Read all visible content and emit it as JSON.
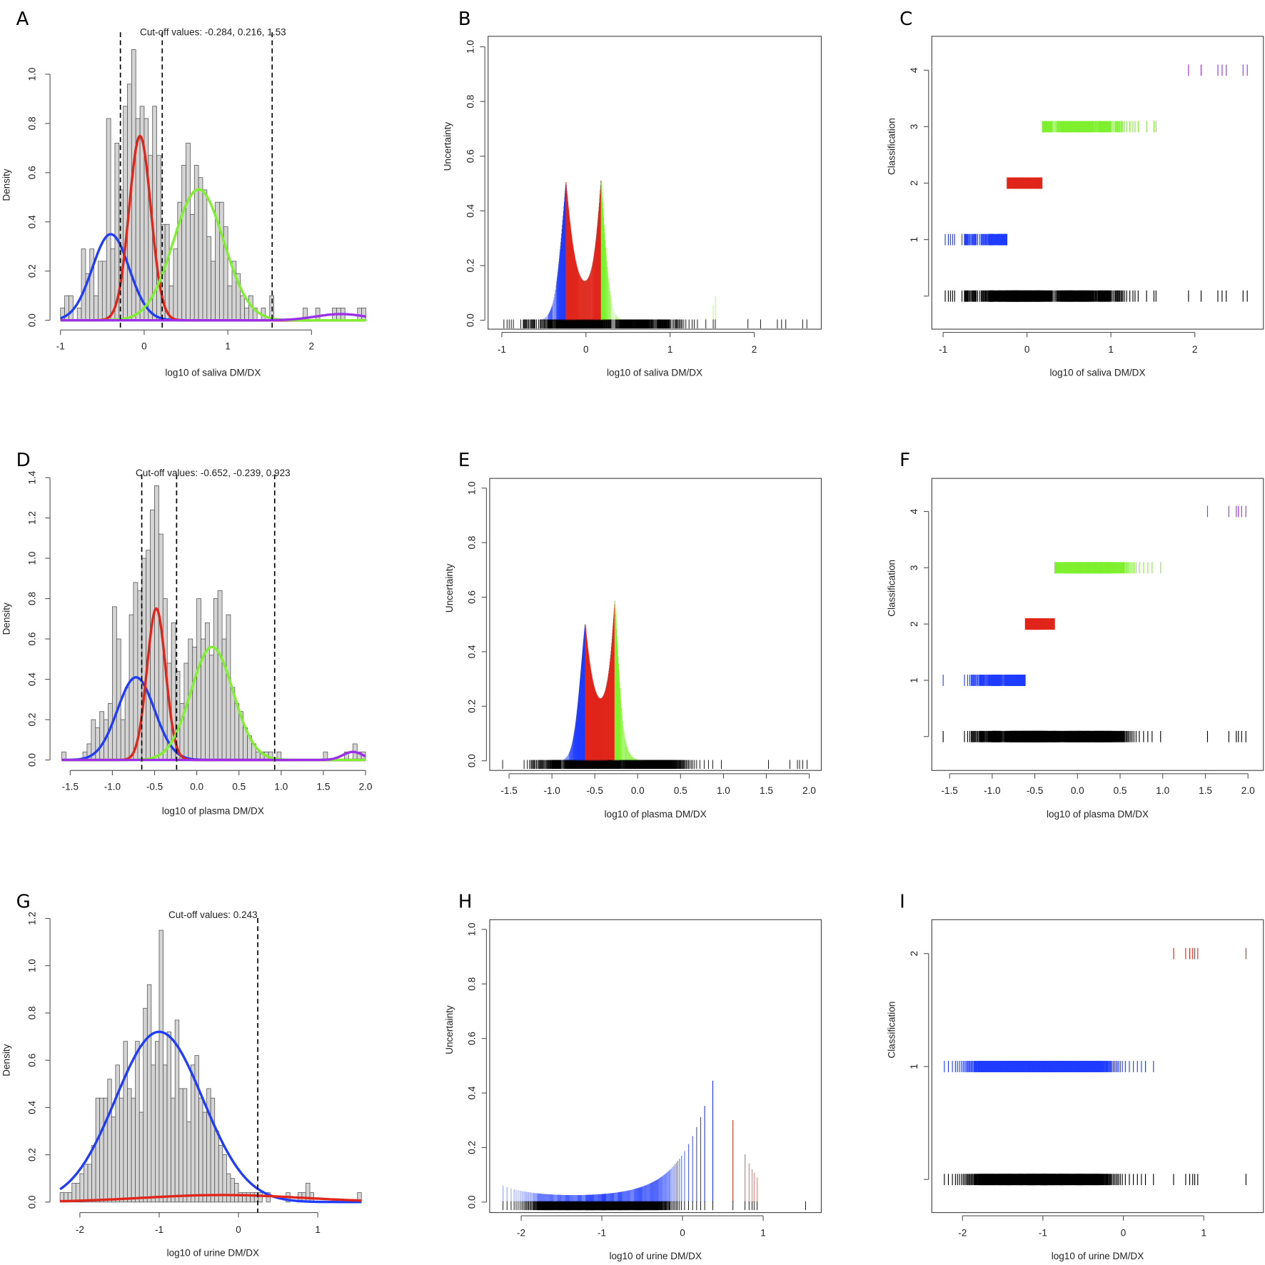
{
  "colors": {
    "blue": "#1f3cff",
    "red": "#e0261b",
    "green": "#7ef02e",
    "purple": "#9b30e8",
    "bar": "#d4d4d4",
    "black": "#000000"
  },
  "chart_data": [
    {
      "panel": "A",
      "type": "histogram-mixture",
      "title": "Cut-off values: -0.284, 0.216, 1.53",
      "cutoffs": [
        -0.284,
        0.216,
        1.53
      ],
      "xlabel": "log10 of saliva DM/DX",
      "ylabel": "Density",
      "xlim": [
        -1,
        2.65
      ],
      "ylim": [
        0,
        1.1
      ],
      "xticks": [
        "-1",
        "0",
        "1",
        "2"
      ],
      "xtick_values": [
        -1,
        0,
        1,
        2
      ],
      "yticks": [
        "0.0",
        "0.2",
        "0.4",
        "0.6",
        "0.8",
        "1.0"
      ],
      "ytick_values": [
        0,
        0.2,
        0.4,
        0.6,
        0.8,
        1.0
      ],
      "bin_start": -1.0,
      "bin_width": 0.05,
      "density": [
        0.05,
        0.1,
        0.1,
        0,
        0.05,
        0.29,
        0.19,
        0.29,
        0.1,
        0.24,
        0.24,
        0.82,
        0.29,
        0.72,
        0.53,
        0.87,
        0.96,
        1.1,
        0.82,
        0.87,
        0.82,
        0.67,
        0.87,
        0.67,
        0.39,
        0.39,
        0.14,
        0.29,
        0.48,
        0.63,
        0.72,
        0.43,
        0.63,
        0.58,
        0.53,
        0.34,
        0.24,
        0.48,
        0.48,
        0.38,
        0.14,
        0.24,
        0.19,
        0.1,
        0.05,
        0.1,
        0.05,
        0,
        0.05,
        0,
        0.1,
        0,
        0,
        0,
        0,
        0,
        0,
        0,
        0.05,
        0,
        0,
        0.05,
        0,
        0,
        0,
        0.05,
        0.05,
        0.05,
        0,
        0,
        0,
        0.05,
        0.05
      ],
      "components": [
        {
          "color": "blue",
          "mean": -0.4,
          "sd": 0.22,
          "weight": 0.193
        },
        {
          "color": "red",
          "mean": -0.05,
          "sd": 0.13,
          "weight": 0.244
        },
        {
          "color": "green",
          "mean": 0.65,
          "sd": 0.3,
          "weight": 0.4
        },
        {
          "color": "purple",
          "mean": 2.35,
          "sd": 0.3,
          "weight": 0.019
        }
      ]
    },
    {
      "panel": "B",
      "type": "uncertainty",
      "xlabel": "log10 of saliva DM/DX",
      "ylabel": "Uncertainty",
      "xlim": [
        -1,
        2.65
      ],
      "ylim": [
        0,
        1
      ],
      "xticks": [
        "-1",
        "0",
        "1",
        "2"
      ],
      "xtick_values": [
        -1,
        0,
        1,
        2
      ],
      "yticks": [
        "0.0",
        "0.2",
        "0.4",
        "0.6",
        "0.8",
        "1.0"
      ],
      "ytick_values": [
        0,
        0.2,
        0.4,
        0.6,
        0.8,
        1.0
      ]
    },
    {
      "panel": "C",
      "type": "classification",
      "xlabel": "log10 of saliva DM/DX",
      "ylabel": "Classification",
      "xlim": [
        -1,
        2.65
      ],
      "xticks": [
        "-1",
        "0",
        "1",
        "2"
      ],
      "xtick_values": [
        -1,
        0,
        1,
        2
      ],
      "yticks": [
        "1",
        "2",
        "3",
        "4"
      ],
      "ytick_values": [
        1,
        2,
        3,
        4
      ]
    },
    {
      "panel": "D",
      "type": "histogram-mixture",
      "title": "Cut-off values: -0.652, -0.239, 0.923",
      "cutoffs": [
        -0.652,
        -0.239,
        0.923
      ],
      "xlabel": "log10 of plasma DM/DX",
      "ylabel": "Density",
      "xlim": [
        -1.6,
        2.0
      ],
      "ylim": [
        0,
        1.4
      ],
      "xticks": [
        "-1.5",
        "-1.0",
        "-0.5",
        "0.0",
        "0.5",
        "1.0",
        "1.5",
        "2.0"
      ],
      "xtick_values": [
        -1.5,
        -1,
        -0.5,
        0,
        0.5,
        1,
        1.5,
        2
      ],
      "yticks": [
        "0.0",
        "0.2",
        "0.4",
        "0.6",
        "0.8",
        "1.0",
        "1.2",
        "1.4"
      ],
      "ytick_values": [
        0,
        0.2,
        0.4,
        0.6,
        0.8,
        1.0,
        1.2,
        1.4
      ],
      "bin_start": -1.6,
      "bin_width": 0.05,
      "density": [
        0.04,
        0,
        0,
        0,
        0,
        0.04,
        0.08,
        0.2,
        0.16,
        0.24,
        0.2,
        0.28,
        0.76,
        0.6,
        0.2,
        0.36,
        0.72,
        0.88,
        0.84,
        1.0,
        1.04,
        1.24,
        1.36,
        1.12,
        0.8,
        0.48,
        0.68,
        0.44,
        0.28,
        0.48,
        0.6,
        0.56,
        0.8,
        0.6,
        0.68,
        0.52,
        0.8,
        0.84,
        0.6,
        0.72,
        0.36,
        0.28,
        0.24,
        0.16,
        0.12,
        0.08,
        0.04,
        0.04,
        0.04,
        0.04,
        0,
        0.04,
        0,
        0,
        0,
        0,
        0,
        0,
        0,
        0,
        0,
        0,
        0.04,
        0,
        0,
        0,
        0,
        0.04,
        0,
        0.08,
        0.04,
        0.04
      ],
      "components": [
        {
          "color": "blue",
          "mean": -0.72,
          "sd": 0.22,
          "weight": 0.226
        },
        {
          "color": "red",
          "mean": -0.48,
          "sd": 0.11,
          "weight": 0.207
        },
        {
          "color": "green",
          "mean": 0.18,
          "sd": 0.25,
          "weight": 0.351
        },
        {
          "color": "purple",
          "mean": 1.85,
          "sd": 0.12,
          "weight": 0.012
        }
      ]
    },
    {
      "panel": "E",
      "type": "uncertainty",
      "xlabel": "log10 of plasma DM/DX",
      "ylabel": "Uncertainty",
      "xlim": [
        -1.6,
        2.0
      ],
      "ylim": [
        0,
        1
      ],
      "xticks": [
        "-1.5",
        "-1.0",
        "-0.5",
        "0.0",
        "0.5",
        "1.0",
        "1.5",
        "2.0"
      ],
      "xtick_values": [
        -1.5,
        -1,
        -0.5,
        0,
        0.5,
        1,
        1.5,
        2
      ],
      "yticks": [
        "0.0",
        "0.2",
        "0.4",
        "0.6",
        "0.8",
        "1.0"
      ],
      "ytick_values": [
        0,
        0.2,
        0.4,
        0.6,
        0.8,
        1.0
      ]
    },
    {
      "panel": "F",
      "type": "classification",
      "xlabel": "log10 of plasma DM/DX",
      "ylabel": "Classification",
      "xlim": [
        -1.6,
        2.0
      ],
      "xticks": [
        "-1.5",
        "-1.0",
        "-0.5",
        "0.0",
        "0.5",
        "1.0",
        "1.5",
        "2.0"
      ],
      "xtick_values": [
        -1.5,
        -1,
        -0.5,
        0,
        0.5,
        1,
        1.5,
        2
      ],
      "yticks": [
        "1",
        "2",
        "3",
        "4"
      ],
      "ytick_values": [
        1,
        2,
        3,
        4
      ]
    },
    {
      "panel": "G",
      "type": "histogram-mixture",
      "title": "Cut-off values: 0.243",
      "cutoffs": [
        0.243
      ],
      "xlabel": "log10 of urine DM/DX",
      "ylabel": "Density",
      "xlim": [
        -2.25,
        1.55
      ],
      "ylim": [
        0,
        1.2
      ],
      "xticks": [
        "-2",
        "-1",
        "0",
        "1"
      ],
      "xtick_values": [
        -2,
        -1,
        0,
        1
      ],
      "yticks": [
        "0.0",
        "0.2",
        "0.4",
        "0.6",
        "0.8",
        "1.0",
        "1.2"
      ],
      "ytick_values": [
        0,
        0.2,
        0.4,
        0.6,
        0.8,
        1.0,
        1.2
      ],
      "bin_start": -2.25,
      "bin_width": 0.05,
      "density": [
        0.04,
        0.04,
        0.04,
        0.08,
        0.08,
        0.12,
        0.16,
        0.16,
        0.24,
        0.44,
        0.44,
        0.44,
        0.52,
        0.36,
        0.58,
        0.44,
        0.68,
        0.48,
        0.44,
        0.68,
        0.38,
        0.82,
        0.92,
        0.58,
        0.68,
        1.15,
        0.58,
        0.72,
        0.44,
        0.77,
        0.48,
        0.48,
        0.34,
        0.58,
        0.62,
        0.44,
        0.38,
        0.48,
        0.44,
        0.3,
        0.24,
        0.2,
        0.12,
        0.1,
        0.08,
        0.04,
        0.04,
        0.04,
        0.04,
        0.04,
        0.04,
        0,
        0.04,
        0,
        0,
        0,
        0,
        0.04,
        0,
        0,
        0.04,
        0.04,
        0.08,
        0.04,
        0,
        0,
        0,
        0,
        0,
        0,
        0,
        0,
        0,
        0,
        0,
        0.04
      ],
      "components": [
        {
          "color": "blue",
          "mean": -1.0,
          "sd": 0.55,
          "weight": 0.993
        },
        {
          "color": "red",
          "mean": -0.2,
          "sd": 1.0,
          "weight": 0.075
        }
      ]
    },
    {
      "panel": "H",
      "type": "uncertainty",
      "xlabel": "log10 of urine DM/DX",
      "ylabel": "Uncertainty",
      "xlim": [
        -2.25,
        1.55
      ],
      "ylim": [
        0,
        1
      ],
      "xticks": [
        "-2",
        "-1",
        "0",
        "1"
      ],
      "xtick_values": [
        -2,
        -1,
        0,
        1
      ],
      "yticks": [
        "0.0",
        "0.2",
        "0.4",
        "0.6",
        "0.8",
        "1.0"
      ],
      "ytick_values": [
        0,
        0.2,
        0.4,
        0.6,
        0.8,
        1.0
      ]
    },
    {
      "panel": "I",
      "type": "classification",
      "xlabel": "log10 of urine DM/DX",
      "ylabel": "Classification",
      "xlim": [
        -2.25,
        1.55
      ],
      "xticks": [
        "-2",
        "-1",
        "0",
        "1"
      ],
      "xtick_values": [
        -2,
        -1,
        0,
        1
      ],
      "yticks": [
        "1",
        "2"
      ],
      "ytick_values": [
        1,
        2
      ]
    }
  ]
}
